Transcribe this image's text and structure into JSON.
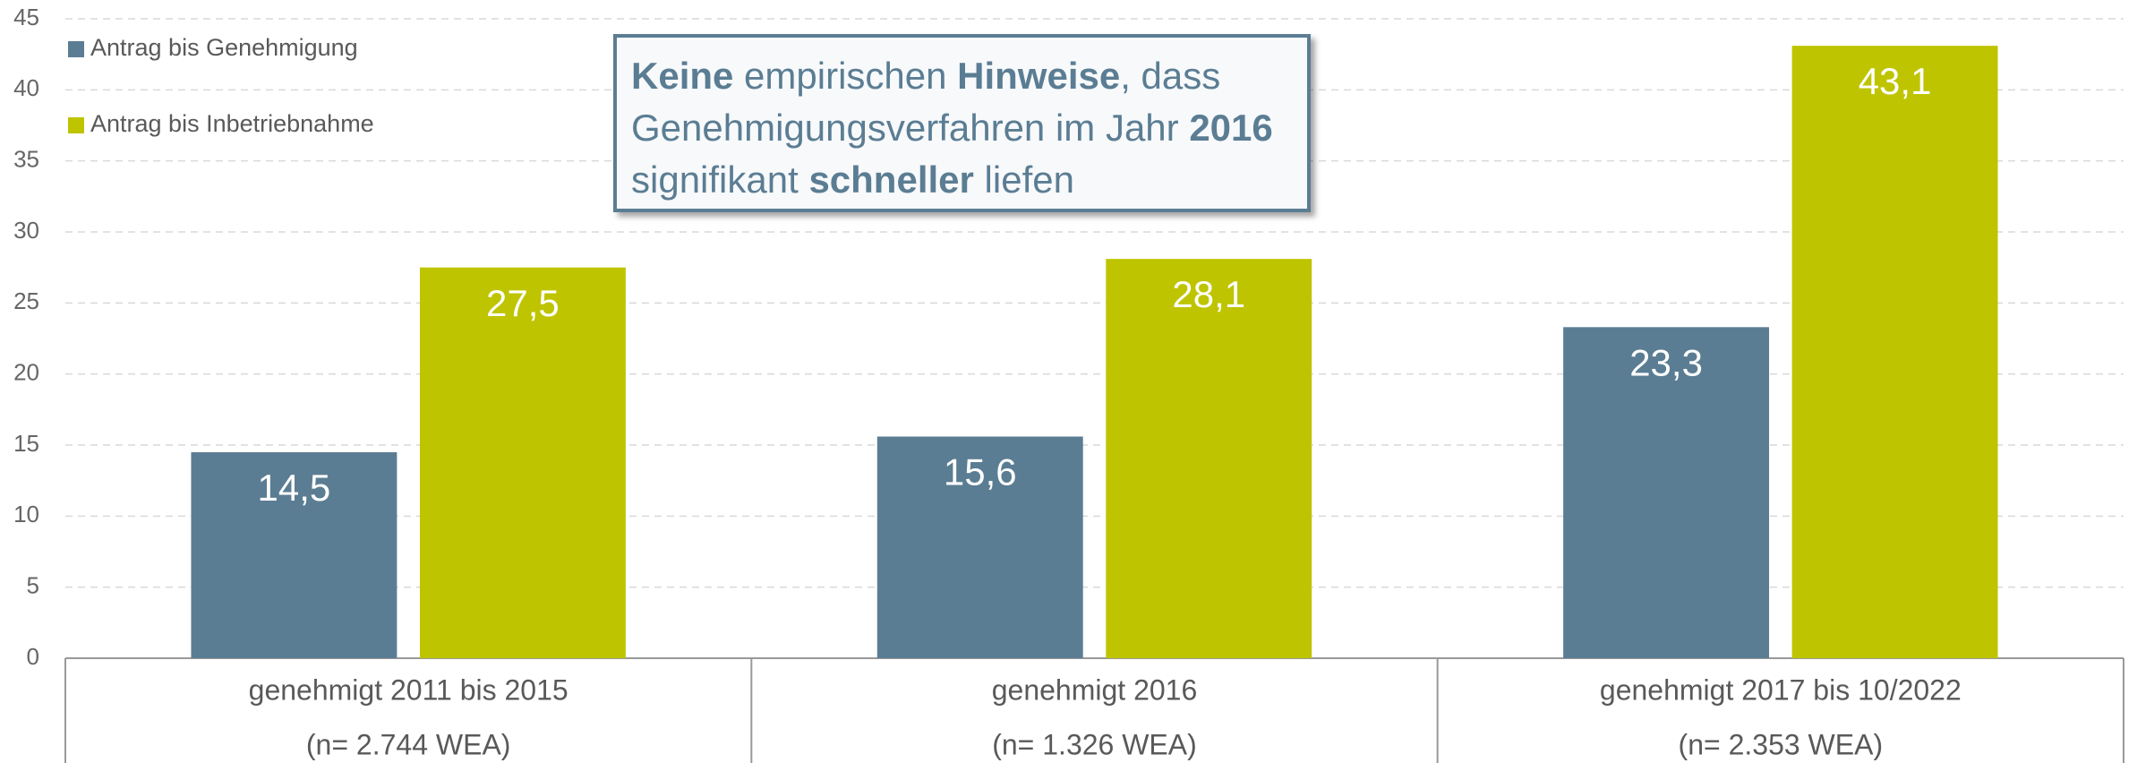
{
  "chart_data": {
    "type": "bar",
    "categories": [
      "genehmigt 2011 bis 2015",
      "genehmigt 2016",
      "genehmigt 2017 bis 10/2022"
    ],
    "category_notes": [
      "(n= 2.744 WEA)",
      "(n= 1.326 WEA)",
      "(n= 2.353 WEA)"
    ],
    "series": [
      {
        "name": "Antrag bis Genehmigung",
        "color": "#5b7d93",
        "values": [
          14.5,
          15.6,
          23.3
        ],
        "value_labels": [
          "14,5",
          "15,6",
          "23,3"
        ]
      },
      {
        "name": "Antrag bis Inbetriebnahme",
        "color": "#bec400",
        "values": [
          27.5,
          28.1,
          43.1
        ],
        "value_labels": [
          "27,5",
          "28,1",
          "43,1"
        ]
      }
    ],
    "ylim": [
      0,
      45
    ],
    "yticks": [
      0,
      5,
      10,
      15,
      20,
      25,
      30,
      35,
      40,
      45
    ],
    "grid": true,
    "legend": "top-left",
    "annotation": [
      {
        "text": "Keine",
        "bold": true
      },
      {
        "text": " empirischen ",
        "bold": false
      },
      {
        "text": "Hinweise",
        "bold": true
      },
      {
        "text": ", dass Genehmigungsverfahren im Jahr ",
        "bold": false
      },
      {
        "text": "2016",
        "bold": true
      },
      {
        "text": " signifikant ",
        "bold": false
      },
      {
        "text": "schneller",
        "bold": true
      },
      {
        "text": " liefen",
        "bold": false
      }
    ]
  }
}
